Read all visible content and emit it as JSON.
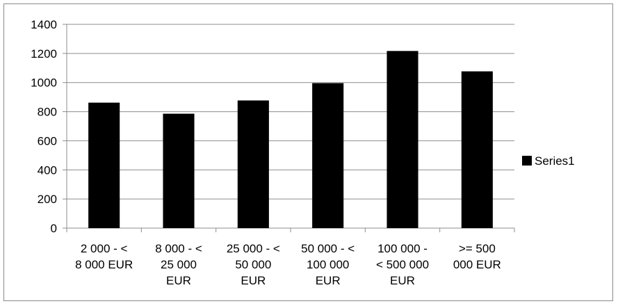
{
  "chart_data": {
    "type": "bar",
    "title": "",
    "xlabel": "",
    "ylabel": "",
    "categories": [
      [
        "2 000 - <",
        "8 000 EUR"
      ],
      [
        "8 000 - <",
        "25 000",
        "EUR"
      ],
      [
        "25 000 - <",
        "50 000",
        "EUR"
      ],
      [
        "50 000 - <",
        "100 000",
        "EUR"
      ],
      [
        "100 000 -",
        "< 500 000",
        "EUR"
      ],
      [
        ">= 500",
        "000 EUR"
      ]
    ],
    "series": [
      {
        "name": "Series1",
        "color": "#000000",
        "values": [
          862,
          786,
          877,
          996,
          1217,
          1077
        ]
      }
    ],
    "ylim": [
      0,
      1400
    ],
    "yticks": [
      0,
      200,
      400,
      600,
      800,
      1000,
      1200,
      1400
    ],
    "grid": true,
    "legend": "right"
  }
}
